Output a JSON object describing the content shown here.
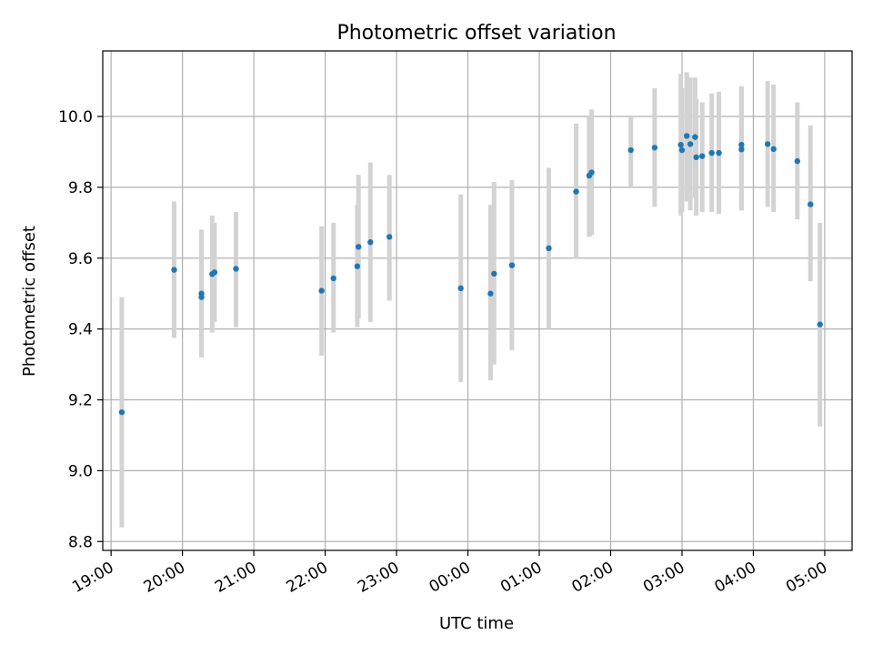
{
  "chart_data": {
    "type": "scatter",
    "title": "Photometric offset variation",
    "xlabel": "UTC time",
    "ylabel": "Photometric offset",
    "x_ticks": [
      "19:00",
      "20:00",
      "21:00",
      "22:00",
      "23:00",
      "00:00",
      "01:00",
      "02:00",
      "03:00",
      "04:00",
      "05:00"
    ],
    "y_ticks": [
      "8.8",
      "9.0",
      "9.2",
      "9.4",
      "9.6",
      "9.8",
      "10.0"
    ],
    "xlim": [
      "18:53",
      "05:23"
    ],
    "ylim": [
      8.775,
      10.185
    ],
    "grid": true,
    "point_color": "#1f77b4",
    "errorbar_color": "#d3d3d3",
    "points": [
      {
        "x": "19:09",
        "y": 9.165,
        "lo": 8.84,
        "hi": 9.49
      },
      {
        "x": "19:53",
        "y": 9.567,
        "lo": 9.375,
        "hi": 9.76
      },
      {
        "x": "20:16",
        "y": 9.5,
        "lo": 9.32,
        "hi": 9.68
      },
      {
        "x": "20:16",
        "y": 9.49,
        "lo": 9.32,
        "hi": 9.68
      },
      {
        "x": "20:25",
        "y": 9.555,
        "lo": 9.39,
        "hi": 9.72
      },
      {
        "x": "20:27",
        "y": 9.56,
        "lo": 9.42,
        "hi": 9.7
      },
      {
        "x": "20:45",
        "y": 9.57,
        "lo": 9.405,
        "hi": 9.73
      },
      {
        "x": "21:57",
        "y": 9.508,
        "lo": 9.325,
        "hi": 9.69
      },
      {
        "x": "22:07",
        "y": 9.543,
        "lo": 9.39,
        "hi": 9.7
      },
      {
        "x": "22:27",
        "y": 9.577,
        "lo": 9.405,
        "hi": 9.75
      },
      {
        "x": "22:28",
        "y": 9.632,
        "lo": 9.43,
        "hi": 9.835
      },
      {
        "x": "22:38",
        "y": 9.645,
        "lo": 9.42,
        "hi": 9.87
      },
      {
        "x": "22:54",
        "y": 9.66,
        "lo": 9.48,
        "hi": 9.835
      },
      {
        "x": "23:54",
        "y": 9.515,
        "lo": 9.25,
        "hi": 9.78
      },
      {
        "x": "00:19",
        "y": 9.5,
        "lo": 9.255,
        "hi": 9.75
      },
      {
        "x": "00:22",
        "y": 9.556,
        "lo": 9.3,
        "hi": 9.815
      },
      {
        "x": "00:37",
        "y": 9.58,
        "lo": 9.34,
        "hi": 9.82
      },
      {
        "x": "01:08",
        "y": 9.628,
        "lo": 9.4,
        "hi": 9.855
      },
      {
        "x": "01:31",
        "y": 9.788,
        "lo": 9.6,
        "hi": 9.98
      },
      {
        "x": "01:42",
        "y": 9.833,
        "lo": 9.66,
        "hi": 10.0
      },
      {
        "x": "01:44",
        "y": 9.842,
        "lo": 9.665,
        "hi": 10.02
      },
      {
        "x": "02:17",
        "y": 9.905,
        "lo": 9.8,
        "hi": 10.0
      },
      {
        "x": "02:37",
        "y": 9.912,
        "lo": 9.745,
        "hi": 10.08
      },
      {
        "x": "02:59",
        "y": 9.92,
        "lo": 9.72,
        "hi": 10.12
      },
      {
        "x": "03:00",
        "y": 9.905,
        "lo": 9.73,
        "hi": 10.08
      },
      {
        "x": "03:04",
        "y": 9.945,
        "lo": 9.76,
        "hi": 10.125
      },
      {
        "x": "03:07",
        "y": 9.922,
        "lo": 9.735,
        "hi": 10.11
      },
      {
        "x": "03:11",
        "y": 9.942,
        "lo": 9.77,
        "hi": 10.11
      },
      {
        "x": "03:12",
        "y": 9.885,
        "lo": 9.72,
        "hi": 10.05
      },
      {
        "x": "03:17",
        "y": 9.888,
        "lo": 9.73,
        "hi": 10.04
      },
      {
        "x": "03:25",
        "y": 9.897,
        "lo": 9.73,
        "hi": 10.065
      },
      {
        "x": "03:31",
        "y": 9.897,
        "lo": 9.725,
        "hi": 10.07
      },
      {
        "x": "03:50",
        "y": 9.92,
        "lo": 9.735,
        "hi": 10.085
      },
      {
        "x": "03:50",
        "y": 9.907,
        "lo": 9.735,
        "hi": 10.085
      },
      {
        "x": "04:12",
        "y": 9.922,
        "lo": 9.745,
        "hi": 10.1
      },
      {
        "x": "04:17",
        "y": 9.908,
        "lo": 9.73,
        "hi": 10.09
      },
      {
        "x": "04:37",
        "y": 9.874,
        "lo": 9.71,
        "hi": 10.04
      },
      {
        "x": "04:48",
        "y": 9.752,
        "lo": 9.535,
        "hi": 9.975
      },
      {
        "x": "04:56",
        "y": 9.413,
        "lo": 9.125,
        "hi": 9.7
      }
    ]
  }
}
